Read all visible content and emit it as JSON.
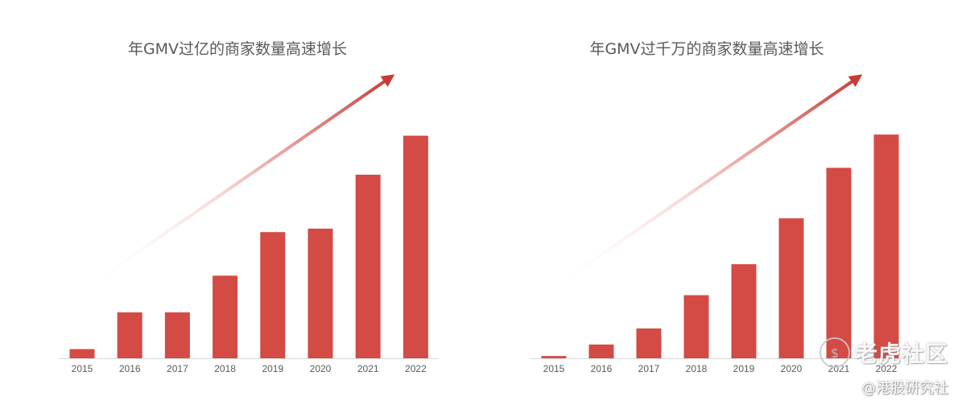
{
  "chart_data": [
    {
      "type": "bar",
      "title": "年GMV过亿的商家数量高速增长",
      "categories": [
        "2015",
        "2016",
        "2017",
        "2018",
        "2019",
        "2020",
        "2021",
        "2022"
      ],
      "values": [
        4,
        20,
        20,
        36,
        55,
        56.5,
        80,
        97
      ],
      "ylim": [
        0,
        100
      ],
      "yaxis_shown": false,
      "grid": false,
      "bar_color": "#d44a44",
      "trend_arrow": true
    },
    {
      "type": "bar",
      "title": "年GMV过千万的商家数量高速增长",
      "categories": [
        "2015",
        "2016",
        "2017",
        "2018",
        "2019",
        "2020",
        "2021",
        "2022"
      ],
      "values": [
        1,
        6,
        13,
        27.5,
        41,
        61,
        83,
        97.5
      ],
      "ylim": [
        0,
        100
      ],
      "yaxis_shown": false,
      "grid": false,
      "bar_color": "#d44a44",
      "trend_arrow": true
    }
  ],
  "watermark": {
    "brand": "老虎社区",
    "handle": "@港股研究社",
    "icon": "tiger-dollar-icon"
  }
}
